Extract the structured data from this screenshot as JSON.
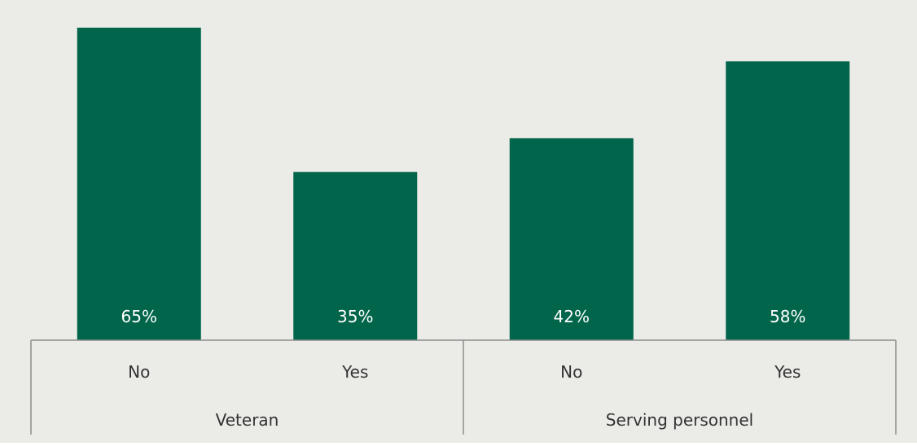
{
  "chart_data": {
    "type": "bar",
    "groups": [
      {
        "label": "Veteran",
        "categories": [
          "No",
          "Yes"
        ],
        "values": [
          65,
          35
        ],
        "value_labels": [
          "65%",
          "35%"
        ]
      },
      {
        "label": "Serving personnel",
        "categories": [
          "No",
          "Yes"
        ],
        "values": [
          42,
          58
        ],
        "value_labels": [
          "42%",
          "58%"
        ]
      }
    ],
    "ylim": [
      0,
      65
    ],
    "grid": false,
    "legend": "none",
    "colors": {
      "background": "#ebece8",
      "bar": "#00654a",
      "bar_label": "#ffffff",
      "axis": "#8c8c8c",
      "text": "#333333"
    }
  }
}
